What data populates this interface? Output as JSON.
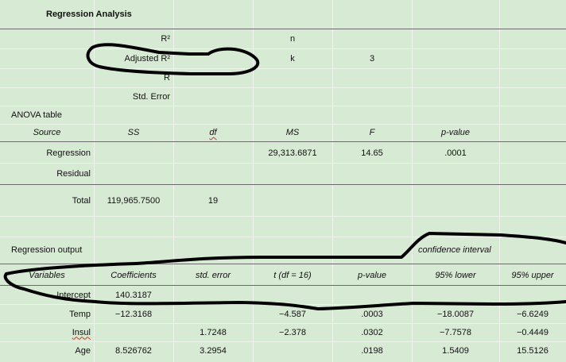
{
  "title": "Regression Analysis",
  "stats": {
    "r2_label": "R²",
    "adj_r2_label": "Adjusted R²",
    "r_label": "R",
    "stderr_label": "Std. Error",
    "n_label": "n",
    "k_label": "k",
    "k_value": "3"
  },
  "anova": {
    "label": "ANOVA table",
    "headers": [
      "Source",
      "SS",
      "df",
      "MS",
      "F",
      "p-value"
    ],
    "regression": {
      "label": "Regression",
      "ms": "29,313.6871",
      "f": "14.65",
      "p": ".0001"
    },
    "residual": {
      "label": "Residual"
    },
    "total": {
      "label": "Total",
      "ss": "119,965.7500",
      "df": "19"
    }
  },
  "output": {
    "label": "Regression output",
    "ci_label": "confidence interval",
    "headers": [
      "Variables",
      "Coefficients",
      "std. error",
      "t (df = 16)",
      "p-value",
      "95% lower",
      "95% upper"
    ],
    "rows": [
      {
        "var": "Intercept",
        "coef": "140.3187",
        "se": "",
        "t": "",
        "p": "",
        "lo": "",
        "hi": ""
      },
      {
        "var": "Temp",
        "coef": "−12.3168",
        "se": "",
        "t": "−4.587",
        "p": ".0003",
        "lo": "−18.0087",
        "hi": "−6.6249"
      },
      {
        "var": "Insul",
        "coef": "",
        "se": "1.7248",
        "t": "−2.378",
        "p": ".0302",
        "lo": "−7.7578",
        "hi": "−0.4449"
      },
      {
        "var": "Age",
        "coef": "8.526762",
        "se": "3.2954",
        "t": "",
        "p": ".0198",
        "lo": "1.5409",
        "hi": "15.5126"
      }
    ]
  }
}
